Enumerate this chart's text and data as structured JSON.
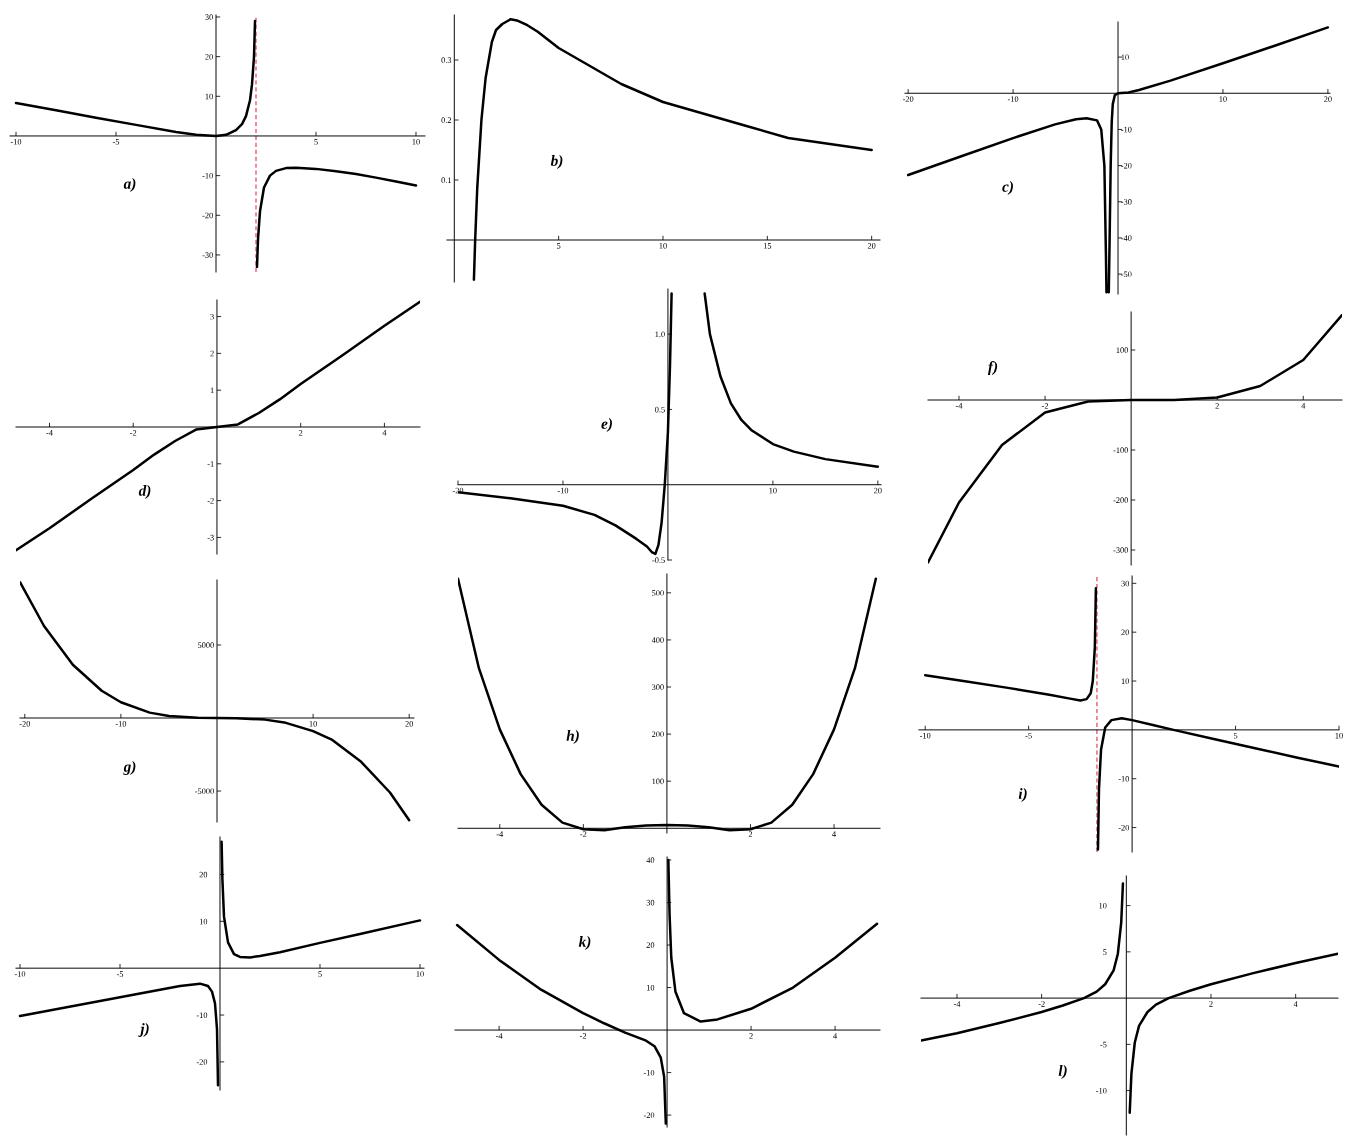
{
  "chart_data": [
    {
      "type": "line",
      "annotations": [
        "a)"
      ],
      "xlim": [
        -10.3,
        10.45
      ],
      "ylim": [
        -34.3,
        30.5
      ],
      "xticks": [
        -10,
        -5,
        5,
        10
      ],
      "yticks": [
        -30,
        -20,
        -10,
        10,
        20,
        30
      ],
      "ref_lines": [
        {
          "axis": "x",
          "value": 2,
          "color": "#e06070",
          "line_style": "dashed"
        }
      ],
      "series": [
        {
          "color": "#000000",
          "x": [
            -10,
            -8,
            -6,
            -4,
            -2,
            -1,
            0,
            0.5,
            1,
            1.3,
            1.5,
            1.7,
            1.8,
            1.9,
            1.95,
            2,
            2.05,
            2.1,
            2.2,
            2.4,
            2.7,
            3,
            3.5,
            4,
            5,
            6,
            7,
            8,
            9,
            10
          ],
          "values": [
            8.3,
            6.5,
            4.6,
            2.8,
            1.0,
            0.3,
            0,
            0.3,
            1.5,
            3,
            5,
            9,
            13,
            20,
            29,
            null,
            -33,
            -26,
            -19,
            -13,
            -10,
            -8.8,
            -8.1,
            -8,
            -8.3,
            -8.9,
            -9.6,
            -10.5,
            -11.5,
            -12.5
          ]
        }
      ]
    },
    {
      "type": "line",
      "annotations": [
        "b)"
      ],
      "xlim": [
        -0.35,
        20.4
      ],
      "ylim": [
        -0.07,
        0.375
      ],
      "xticks": [
        5,
        10,
        15,
        20
      ],
      "yticks": [
        0.1,
        0.2,
        0.3
      ],
      "series": [
        {
          "color": "#000000",
          "x": [
            0.94,
            1,
            1.1,
            1.3,
            1.5,
            1.8,
            2,
            2.3,
            2.7,
            3,
            3.5,
            4,
            5,
            6,
            7,
            8,
            10,
            12,
            14,
            16,
            18,
            20
          ],
          "values": [
            -0.066,
            0,
            0.087,
            0.2,
            0.27,
            0.33,
            0.35,
            0.36,
            0.368,
            0.366,
            0.358,
            0.347,
            0.32,
            0.3,
            0.28,
            0.26,
            0.23,
            0.21,
            0.19,
            0.17,
            0.16,
            0.15
          ]
        }
      ]
    },
    {
      "type": "line",
      "annotations": [
        "c)"
      ],
      "xlim": [
        -20.3,
        20.2
      ],
      "ylim": [
        -55.5,
        19.7
      ],
      "xticks": [
        -20,
        -10,
        10,
        20
      ],
      "yticks": [
        -50,
        -40,
        -30,
        -20,
        -10,
        10
      ],
      "series": [
        {
          "color": "#000000",
          "x": [
            -20,
            -15,
            -10,
            -6,
            -4,
            -3,
            -2,
            -1.6,
            -1.3,
            -1.15,
            -1.1,
            -1,
            -0.88,
            -0.8,
            -0.7,
            -0.6,
            -0.5,
            -0.3,
            0,
            1,
            2,
            5,
            10,
            15,
            20
          ],
          "values": [
            -22.6,
            -17.5,
            -12.4,
            -8.6,
            -7.2,
            -6.9,
            -7.5,
            -10,
            -20,
            -45,
            -55,
            null,
            -55,
            -40,
            -20,
            -8,
            -3,
            -0.5,
            0,
            0.2,
            0.9,
            3.5,
            8.3,
            13.2,
            18.2
          ]
        }
      ]
    },
    {
      "type": "line",
      "annotations": [
        "d)"
      ],
      "xlim": [
        -4.8,
        4.85
      ],
      "ylim": [
        -3.45,
        3.45
      ],
      "xticks": [
        -4,
        -2,
        2,
        4
      ],
      "yticks": [
        -3,
        -2,
        -1,
        1,
        2,
        3
      ],
      "series": [
        {
          "color": "#000000",
          "x": [
            -4.8,
            -4,
            -3,
            -2,
            -1.5,
            -1,
            -0.5,
            0,
            0.5,
            1,
            1.5,
            2,
            3,
            4,
            4.85
          ],
          "values": [
            -3.35,
            -2.75,
            -1.95,
            -1.17,
            -0.75,
            -0.38,
            -0.07,
            0,
            0.07,
            0.38,
            0.75,
            1.17,
            1.95,
            2.75,
            3.4
          ]
        }
      ]
    },
    {
      "type": "line",
      "annotations": [
        "e)"
      ],
      "xlim": [
        -20,
        20.3
      ],
      "ylim": [
        -0.5,
        1.3
      ],
      "xticks": [
        -20,
        -10,
        10,
        20
      ],
      "yticks": [
        -0.5,
        0.5,
        {
          "value": 1,
          "label": "1.0"
        }
      ],
      "series": [
        {
          "color": "#000000",
          "x": [
            -20,
            -15,
            -10,
            -7,
            -5,
            -3,
            -2,
            -1.5,
            -1.2,
            -0.9,
            -0.6,
            -0.3,
            0,
            0.2,
            0.35,
            2,
            3.5,
            4,
            5,
            6,
            7,
            8,
            10,
            12,
            15,
            20
          ],
          "values": [
            -0.05,
            -0.09,
            -0.14,
            -0.2,
            -0.27,
            -0.36,
            -0.41,
            -0.45,
            -0.46,
            -0.4,
            -0.25,
            0,
            0.35,
            0.8,
            1.27,
            null,
            1.27,
            1.0,
            0.72,
            0.54,
            0.43,
            0.36,
            0.27,
            0.22,
            0.17,
            0.12
          ]
        }
      ]
    },
    {
      "type": "line",
      "annotations": [
        "f)"
      ],
      "xlim": [
        -4.72,
        4.9
      ],
      "ylim": [
        -330,
        176
      ],
      "xticks": [
        -4,
        -2,
        2,
        4
      ],
      "yticks": [
        -300,
        -200,
        -100,
        100
      ],
      "series": [
        {
          "color": "#000000",
          "x": [
            -4.72,
            -4,
            -3,
            -2,
            -1,
            0,
            1,
            2,
            3,
            4,
            4.9
          ],
          "values": [
            -325,
            -205,
            -90,
            -25,
            -3,
            0,
            0,
            5,
            28,
            80,
            170
          ]
        }
      ]
    },
    {
      "type": "line",
      "annotations": [
        "g)"
      ],
      "xlim": [
        -20.5,
        20.5
      ],
      "ylim": [
        -7120,
        9450
      ],
      "xticks": [
        -20,
        -10,
        10,
        20
      ],
      "yticks": [
        -5000,
        5000
      ],
      "series": [
        {
          "color": "#000000",
          "x": [
            -20.5,
            -18,
            -15,
            -12,
            -10,
            -7,
            -5,
            -2,
            0,
            2,
            5,
            7,
            10,
            12,
            15,
            18,
            20
          ],
          "values": [
            9300,
            6300,
            3650,
            1870,
            1080,
            370,
            140,
            10,
            0,
            -10,
            -110,
            -300,
            -900,
            -1500,
            -3000,
            -5100,
            -7000
          ]
        }
      ]
    },
    {
      "type": "line",
      "annotations": [
        "h)"
      ],
      "xlim": [
        -5.0,
        5.1
      ],
      "ylim": [
        -10,
        540
      ],
      "xticks": [
        -4,
        -2,
        2,
        4
      ],
      "yticks": [
        100,
        200,
        300,
        400,
        500
      ],
      "series": [
        {
          "color": "#000000",
          "x": [
            -5,
            -4.5,
            -4,
            -3.5,
            -3,
            -2.5,
            -2,
            -1.5,
            -1,
            -0.5,
            0,
            0.5,
            1,
            1.5,
            2,
            2.5,
            3,
            3.5,
            4,
            4.5,
            5
          ],
          "values": [
            530,
            340,
            210,
            115,
            50,
            12,
            -2,
            -4,
            2,
            6,
            7,
            6,
            2,
            -4,
            -2,
            12,
            50,
            115,
            210,
            340,
            530
          ]
        }
      ]
    },
    {
      "type": "line",
      "annotations": [
        "i)"
      ],
      "xlim": [
        -10.3,
        10.0
      ],
      "ylim": [
        -25,
        31.5
      ],
      "xticks": [
        -10,
        -5,
        5,
        10
      ],
      "yticks": [
        -20,
        -10,
        10,
        20,
        30
      ],
      "ref_lines": [
        {
          "axis": "x",
          "value": -1.7,
          "color": "#e06070",
          "line_style": "dashed"
        }
      ],
      "series": [
        {
          "color": "#000000",
          "x": [
            -10,
            -8,
            -6,
            -4,
            -3,
            -2.5,
            -2.2,
            -2,
            -1.9,
            -1.8,
            -1.75,
            -1.7,
            -1.65,
            -1.6,
            -1.5,
            -1.3,
            -1,
            -0.5,
            0,
            1,
            2,
            4,
            6,
            8,
            10
          ],
          "values": [
            11.2,
            9.9,
            8.6,
            7.2,
            6.4,
            6,
            6.3,
            7.5,
            10,
            17,
            29,
            null,
            -24.5,
            -12,
            -4,
            0.5,
            2,
            2.4,
            2,
            1,
            0,
            -1.9,
            -3.8,
            -5.7,
            -7.5
          ]
        }
      ]
    },
    {
      "type": "line",
      "annotations": [
        "j)"
      ],
      "xlim": [
        -10.2,
        10.2
      ],
      "ylim": [
        -26,
        28
      ],
      "xticks": [
        -10,
        -5,
        5,
        10
      ],
      "yticks": [
        -20,
        -10,
        10,
        20
      ],
      "series": [
        {
          "color": "#000000",
          "x": [
            -10,
            -7,
            -5,
            -3,
            -2,
            -1,
            -0.6,
            -0.4,
            -0.25,
            -0.15,
            -0.1,
            0,
            0.08,
            0.12,
            0.2,
            0.4,
            0.7,
            1,
            1.5,
            2,
            3,
            5,
            7,
            10
          ],
          "values": [
            -10.2,
            -7.8,
            -6.2,
            -4.6,
            -3.8,
            -3.3,
            -3.8,
            -5,
            -7.5,
            -13,
            -25,
            null,
            27,
            19,
            11,
            5.5,
            3,
            2.4,
            2.3,
            2.6,
            3.4,
            5.4,
            7.3,
            10.2
          ]
        }
      ]
    },
    {
      "type": "line",
      "annotations": [
        "k)"
      ],
      "xlim": [
        -5.05,
        5.07
      ],
      "ylim": [
        -22.8,
        40.7
      ],
      "xticks": [
        -4,
        -2,
        2,
        4
      ],
      "yticks": [
        -20,
        -10,
        10,
        20,
        30,
        40
      ],
      "series": [
        {
          "color": "#000000",
          "x": [
            -5,
            -4,
            -3,
            -2,
            -1.5,
            -1,
            -0.5,
            -0.3,
            -0.15,
            -0.07,
            -0.03,
            0,
            0.03,
            0.06,
            0.1,
            0.2,
            0.4,
            0.8,
            1.2,
            2,
            3,
            4,
            5
          ],
          "values": [
            24.7,
            16.5,
            9.5,
            4,
            1.6,
            -0.6,
            -2.5,
            -3.8,
            -6.5,
            -11,
            -22,
            null,
            40,
            27,
            17,
            9,
            4,
            2,
            2.5,
            5,
            10,
            17,
            25
          ]
        }
      ]
    },
    {
      "type": "line",
      "annotations": [
        "l)"
      ],
      "xlim": [
        -4.85,
        5.0
      ],
      "ylim": [
        -14.8,
        13.2
      ],
      "xticks": [
        -4,
        -2,
        2,
        4
      ],
      "yticks": [
        -10,
        -5,
        5,
        10
      ],
      "series": [
        {
          "color": "#000000",
          "x": [
            -4.85,
            -4,
            -3,
            -2,
            -1.5,
            -1,
            -0.7,
            -0.5,
            -0.3,
            -0.2,
            -0.12,
            -0.08,
            0,
            0.08,
            0.12,
            0.2,
            0.3,
            0.5,
            0.7,
            1,
            1.5,
            2,
            3,
            4,
            5
          ],
          "values": [
            -4.6,
            -3.8,
            -2.7,
            -1.5,
            -0.8,
            0,
            0.7,
            1.5,
            3,
            4.8,
            8.2,
            12.4,
            null,
            -12.4,
            -8.2,
            -4.8,
            -3,
            -1.5,
            -0.7,
            0,
            0.8,
            1.5,
            2.7,
            3.8,
            4.8
          ]
        }
      ]
    }
  ]
}
